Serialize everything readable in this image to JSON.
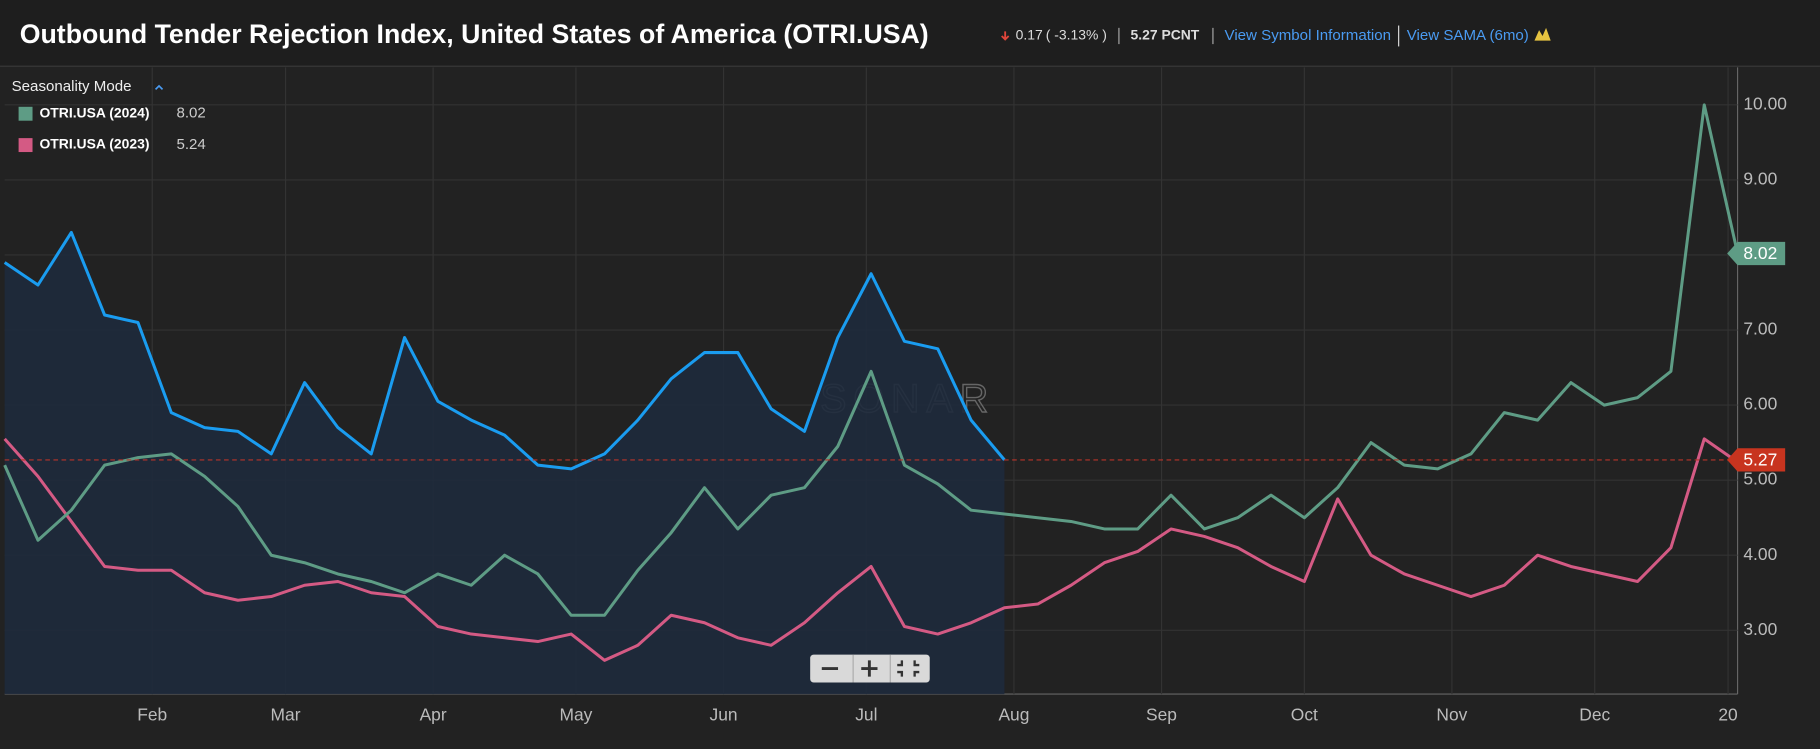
{
  "header": {
    "title": "Outbound Tender Rejection Index, United States of America (OTRI.USA)",
    "change": "0.17",
    "change_pct": "( -3.13% )",
    "last": "5.27 PCNT",
    "link1": "View Symbol Information",
    "link2": "View SAMA (6mo)"
  },
  "chart_data": {
    "type": "line",
    "mode_label": "Seasonality Mode",
    "watermark": "SONAR",
    "x": [
      0,
      7,
      14,
      21,
      28,
      35,
      42,
      49,
      56,
      63,
      70,
      77,
      84,
      91,
      98,
      105,
      112,
      119,
      126,
      133,
      140,
      147,
      154,
      161,
      168,
      175,
      182,
      189,
      196,
      203,
      210,
      217,
      224,
      231,
      238,
      245,
      252,
      259,
      266,
      273,
      280,
      287,
      294,
      301,
      308,
      315,
      322,
      329,
      336,
      343,
      350,
      357,
      364
    ],
    "series": [
      {
        "color": "#1a9cf0",
        "values": [
          7.9,
          7.6,
          8.3,
          7.2,
          7.1,
          5.9,
          5.7,
          5.65,
          5.35,
          6.3,
          5.7,
          5.35,
          6.9,
          6.05,
          5.8,
          5.6,
          5.2,
          5.15,
          5.35,
          5.8,
          6.35,
          6.7,
          6.7,
          5.95,
          5.65,
          6.9,
          7.75,
          6.85,
          6.75,
          5.8,
          5.27,
          null,
          null,
          null,
          null,
          null,
          null,
          null,
          null,
          null,
          null,
          null,
          null,
          null,
          null,
          null,
          null,
          null,
          null,
          null,
          null,
          null,
          null
        ]
      },
      {
        "name": "OTRI.USA (2024)",
        "color": "#5e9c85",
        "values": [
          5.2,
          4.2,
          4.6,
          5.2,
          5.3,
          5.35,
          5.05,
          4.65,
          4.0,
          3.9,
          3.75,
          3.65,
          3.5,
          3.75,
          3.6,
          4.0,
          3.75,
          3.2,
          3.2,
          3.8,
          4.3,
          4.9,
          4.35,
          4.8,
          4.9,
          5.45,
          6.45,
          5.2,
          4.95,
          4.6,
          4.55,
          4.5,
          4.45,
          4.35,
          4.35,
          4.8,
          4.35,
          4.5,
          4.8,
          4.5,
          4.9,
          5.5,
          5.2,
          5.15,
          5.35,
          5.9,
          5.8,
          6.3,
          6.0,
          6.1,
          6.45,
          10.0,
          8.02
        ]
      },
      {
        "name": "OTRI.USA (2023)",
        "color": "#d45a84",
        "values": [
          5.55,
          5.05,
          4.45,
          3.85,
          3.8,
          3.8,
          3.5,
          3.4,
          3.45,
          3.6,
          3.65,
          3.5,
          3.45,
          3.05,
          2.95,
          2.9,
          2.85,
          2.95,
          2.6,
          2.8,
          3.2,
          3.1,
          2.9,
          2.8,
          3.1,
          3.5,
          3.85,
          3.05,
          2.95,
          3.1,
          3.3,
          3.35,
          3.6,
          3.9,
          4.05,
          4.35,
          4.25,
          4.1,
          3.85,
          3.65,
          4.75,
          4.0,
          3.75,
          3.6,
          3.45,
          3.6,
          4.0,
          3.85,
          3.75,
          3.65,
          4.1,
          5.55,
          5.24
        ]
      }
    ],
    "xlim": [
      0,
      364
    ],
    "xticks": [
      {
        "value": 31,
        "label": "Feb"
      },
      {
        "value": 59,
        "label": "Mar"
      },
      {
        "value": 90,
        "label": "Apr"
      },
      {
        "value": 120,
        "label": "May"
      },
      {
        "value": 151,
        "label": "Jun"
      },
      {
        "value": 181,
        "label": "Jul"
      },
      {
        "value": 212,
        "label": "Aug"
      },
      {
        "value": 243,
        "label": "Sep"
      },
      {
        "value": 273,
        "label": "Oct"
      },
      {
        "value": 304,
        "label": "Nov"
      },
      {
        "value": 334,
        "label": "Dec"
      },
      {
        "value": 362,
        "label": "20"
      }
    ],
    "ylim": [
      2.15,
      10.5
    ],
    "yticks": [
      {
        "value": 3,
        "label": "3.00"
      },
      {
        "value": 4,
        "label": "4.00"
      },
      {
        "value": 5,
        "label": "5.00"
      },
      {
        "value": 6,
        "label": "6.00"
      },
      {
        "value": 7,
        "label": "7.00"
      },
      {
        "value": 8,
        "label": "8.00"
      },
      {
        "value": 9,
        "label": "9.00"
      },
      {
        "value": 10,
        "label": "10.00"
      }
    ],
    "grid": true
  }
}
